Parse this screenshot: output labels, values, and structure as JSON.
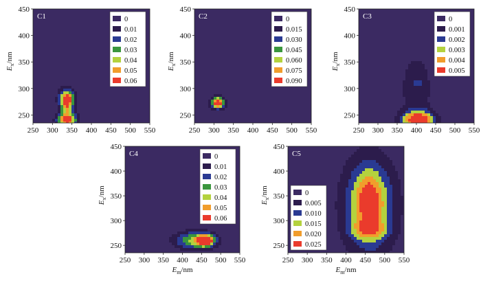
{
  "figure": {
    "x_axis_unit": "/nm",
    "y_axis_unit": "/nm"
  },
  "chart_data": [
    {
      "type": "heatmap",
      "panel_label": "C1",
      "xlim": [
        250,
        550
      ],
      "ylim": [
        235,
        450
      ],
      "xticks": [
        250,
        300,
        350,
        400,
        450,
        500,
        550
      ],
      "yticks": [
        250,
        300,
        350,
        400,
        450
      ],
      "xlabel_visible": false,
      "ylabel_visible": true,
      "legend_position": "top-right",
      "legend_levels": [
        "0",
        "0.01",
        "0.02",
        "0.03",
        "0.04",
        "0.05",
        "0.06"
      ],
      "max_value": 0.065,
      "peaks": [
        {
          "em": 337,
          "ex": 280,
          "value": 0.062,
          "sx": 14,
          "sy": 13
        },
        {
          "em": 337,
          "ex": 240,
          "value": 0.062,
          "sx": 18,
          "sy": 10
        },
        {
          "em": 337,
          "ex": 262,
          "value": 0.02,
          "sx": 10,
          "sy": 14
        }
      ]
    },
    {
      "type": "heatmap",
      "panel_label": "C2",
      "xlim": [
        250,
        550
      ],
      "ylim": [
        235,
        450
      ],
      "xticks": [
        250,
        300,
        350,
        400,
        450,
        500,
        550
      ],
      "yticks": [
        250,
        300,
        350,
        400,
        450
      ],
      "xlabel_visible": false,
      "ylabel_visible": true,
      "legend_position": "top-right",
      "legend_levels": [
        "0",
        "0.015",
        "0.030",
        "0.045",
        "0.060",
        "0.075",
        "0.090"
      ],
      "max_value": 0.095,
      "peaks": [
        {
          "em": 310,
          "ex": 272,
          "value": 0.095,
          "sx": 12,
          "sy": 7
        },
        {
          "em": 310,
          "ex": 282,
          "value": 0.02,
          "sx": 10,
          "sy": 8
        }
      ]
    },
    {
      "type": "heatmap",
      "panel_label": "C3",
      "xlim": [
        250,
        550
      ],
      "ylim": [
        235,
        450
      ],
      "xticks": [
        250,
        300,
        350,
        400,
        450,
        500,
        550
      ],
      "yticks": [
        250,
        300,
        350,
        400,
        450
      ],
      "xlabel_visible": false,
      "ylabel_visible": true,
      "legend_position": "top-right",
      "legend_levels": [
        "0",
        "0.001",
        "0.002",
        "0.003",
        "0.004",
        "0.005"
      ],
      "max_value": 0.0055,
      "peaks": [
        {
          "em": 405,
          "ex": 240,
          "value": 0.0056,
          "sx": 30,
          "sy": 12
        },
        {
          "em": 400,
          "ex": 300,
          "value": 0.0016,
          "sx": 32,
          "sy": 50
        },
        {
          "em": 405,
          "ex": 310,
          "value": 0.0012,
          "sx": 6,
          "sy": 4
        }
      ]
    },
    {
      "type": "heatmap",
      "panel_label": "C4",
      "xlim": [
        250,
        550
      ],
      "ylim": [
        235,
        450
      ],
      "xticks": [
        250,
        300,
        350,
        400,
        450,
        500,
        550
      ],
      "yticks": [
        250,
        300,
        350,
        400,
        450
      ],
      "xlabel_visible": true,
      "ylabel_visible": true,
      "legend_position": "top-right",
      "legend_levels": [
        "0",
        "0.01",
        "0.02",
        "0.03",
        "0.04",
        "0.05",
        "0.06"
      ],
      "max_value": 0.065,
      "peaks": [
        {
          "em": 460,
          "ex": 260,
          "value": 0.066,
          "sx": 16,
          "sy": 8
        },
        {
          "em": 430,
          "ex": 260,
          "value": 0.038,
          "sx": 38,
          "sy": 13
        }
      ]
    },
    {
      "type": "heatmap",
      "panel_label": "C5",
      "xlim": [
        250,
        550
      ],
      "ylim": [
        235,
        450
      ],
      "xticks": [
        250,
        300,
        350,
        400,
        450,
        500,
        550
      ],
      "yticks": [
        250,
        300,
        350,
        400,
        450
      ],
      "xlabel_visible": true,
      "ylabel_visible": true,
      "legend_position": "bottom-left",
      "legend_levels": [
        "0",
        "0.005",
        "0.010",
        "0.015",
        "0.020",
        "0.025"
      ],
      "max_value": 0.0275,
      "peaks": [
        {
          "em": 460,
          "ex": 330,
          "value": 0.02,
          "sx": 50,
          "sy": 70
        },
        {
          "em": 460,
          "ex": 340,
          "value": 0.01,
          "sx": 22,
          "sy": 40
        },
        {
          "em": 460,
          "ex": 282,
          "value": 0.011,
          "sx": 30,
          "sy": 12
        }
      ]
    }
  ]
}
